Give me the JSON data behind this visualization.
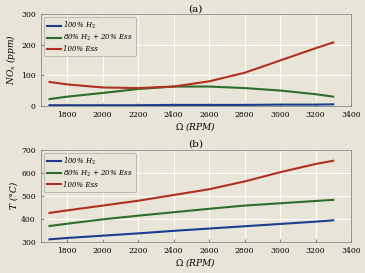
{
  "title_a": "(a)",
  "title_b": "(b)",
  "xlabel": "$\\Omega$ (RPM)",
  "ylabel_a": "$NO_x$ (ppm)",
  "ylabel_b": "T (°C)",
  "rpm": [
    1700,
    1800,
    2000,
    2200,
    2400,
    2600,
    2800,
    3000,
    3200,
    3300
  ],
  "nox_h2": [
    2,
    2,
    2,
    2,
    3,
    3,
    3,
    4,
    4,
    5
  ],
  "nox_blend": [
    22,
    30,
    42,
    55,
    63,
    63,
    58,
    50,
    38,
    30
  ],
  "nox_ess": [
    78,
    70,
    60,
    58,
    63,
    80,
    108,
    148,
    188,
    207
  ],
  "T_h2": [
    310,
    316,
    326,
    336,
    347,
    357,
    367,
    377,
    387,
    393
  ],
  "T_blend": [
    368,
    378,
    397,
    413,
    428,
    443,
    457,
    467,
    477,
    482
  ],
  "T_ess": [
    425,
    436,
    457,
    478,
    503,
    528,
    562,
    602,
    638,
    652
  ],
  "color_h2": "#1a3e8c",
  "color_blend": "#2d6e2d",
  "color_ess": "#b03020",
  "legend_h2": "100% $H_2$",
  "legend_blend": "80% $H_2$ + 20% Ess",
  "legend_ess": "100% Ess",
  "ylim_a": [
    0,
    300
  ],
  "ylim_b": [
    300,
    700
  ],
  "yticks_a": [
    0,
    100,
    200,
    300
  ],
  "yticks_b": [
    300,
    400,
    500,
    600,
    700
  ],
  "xticks": [
    1800,
    2000,
    2200,
    2400,
    2600,
    2800,
    3000,
    3200,
    3400
  ],
  "xlim": [
    1650,
    3400
  ],
  "bg_color": "#e8e4d8",
  "lw": 1.5
}
